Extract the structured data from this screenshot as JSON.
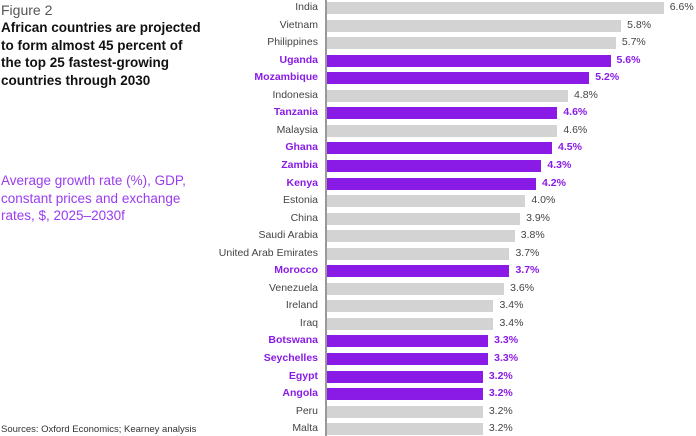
{
  "figure_label": "Figure 2",
  "chart_data": {
    "type": "bar",
    "orientation": "horizontal",
    "title": "African countries are projected to form almost 45 percent of the top 25 fastest-growing countries through 2030",
    "subtitle": "Average growth rate (%), GDP, constant prices and exchange rates, $, 2025–2030f",
    "source": "Sources: Oxford Economics; Kearney analysis",
    "unit": "%",
    "colors": {
      "african": "#8a1be6",
      "other": "#d3d3d3"
    },
    "categories": [
      "India",
      "Vietnam",
      "Philippines",
      "Uganda",
      "Mozambique",
      "Indonesia",
      "Tanzania",
      "Malaysia",
      "Ghana",
      "Zambia",
      "Kenya",
      "Estonia",
      "China",
      "Saudi Arabia",
      "United Arab Emirates",
      "Morocco",
      "Venezuela",
      "Ireland",
      "Iraq",
      "Botswana",
      "Seychelles",
      "Egypt",
      "Angola",
      "Peru",
      "Malta"
    ],
    "values": [
      6.6,
      5.8,
      5.7,
      5.6,
      5.2,
      4.8,
      4.6,
      4.6,
      4.5,
      4.3,
      4.2,
      4.0,
      3.9,
      3.8,
      3.7,
      3.7,
      3.6,
      3.4,
      3.4,
      3.3,
      3.3,
      3.2,
      3.2,
      3.2,
      3.2
    ],
    "labels": [
      "6.6%",
      "5.8%",
      "5.7%",
      "5.6%",
      "5.2%",
      "4.8%",
      "4.6%",
      "4.6%",
      "4.5%",
      "4.3%",
      "4.2%",
      "4.0%",
      "3.9%",
      "3.8%",
      "3.7%",
      "3.7%",
      "3.6%",
      "3.4%",
      "3.4%",
      "3.3%",
      "3.3%",
      "3.2%",
      "3.2%",
      "3.2%",
      "3.2%"
    ],
    "african": [
      false,
      false,
      false,
      true,
      true,
      false,
      true,
      false,
      true,
      true,
      true,
      false,
      false,
      false,
      false,
      true,
      false,
      false,
      false,
      true,
      true,
      true,
      true,
      false,
      false
    ]
  }
}
